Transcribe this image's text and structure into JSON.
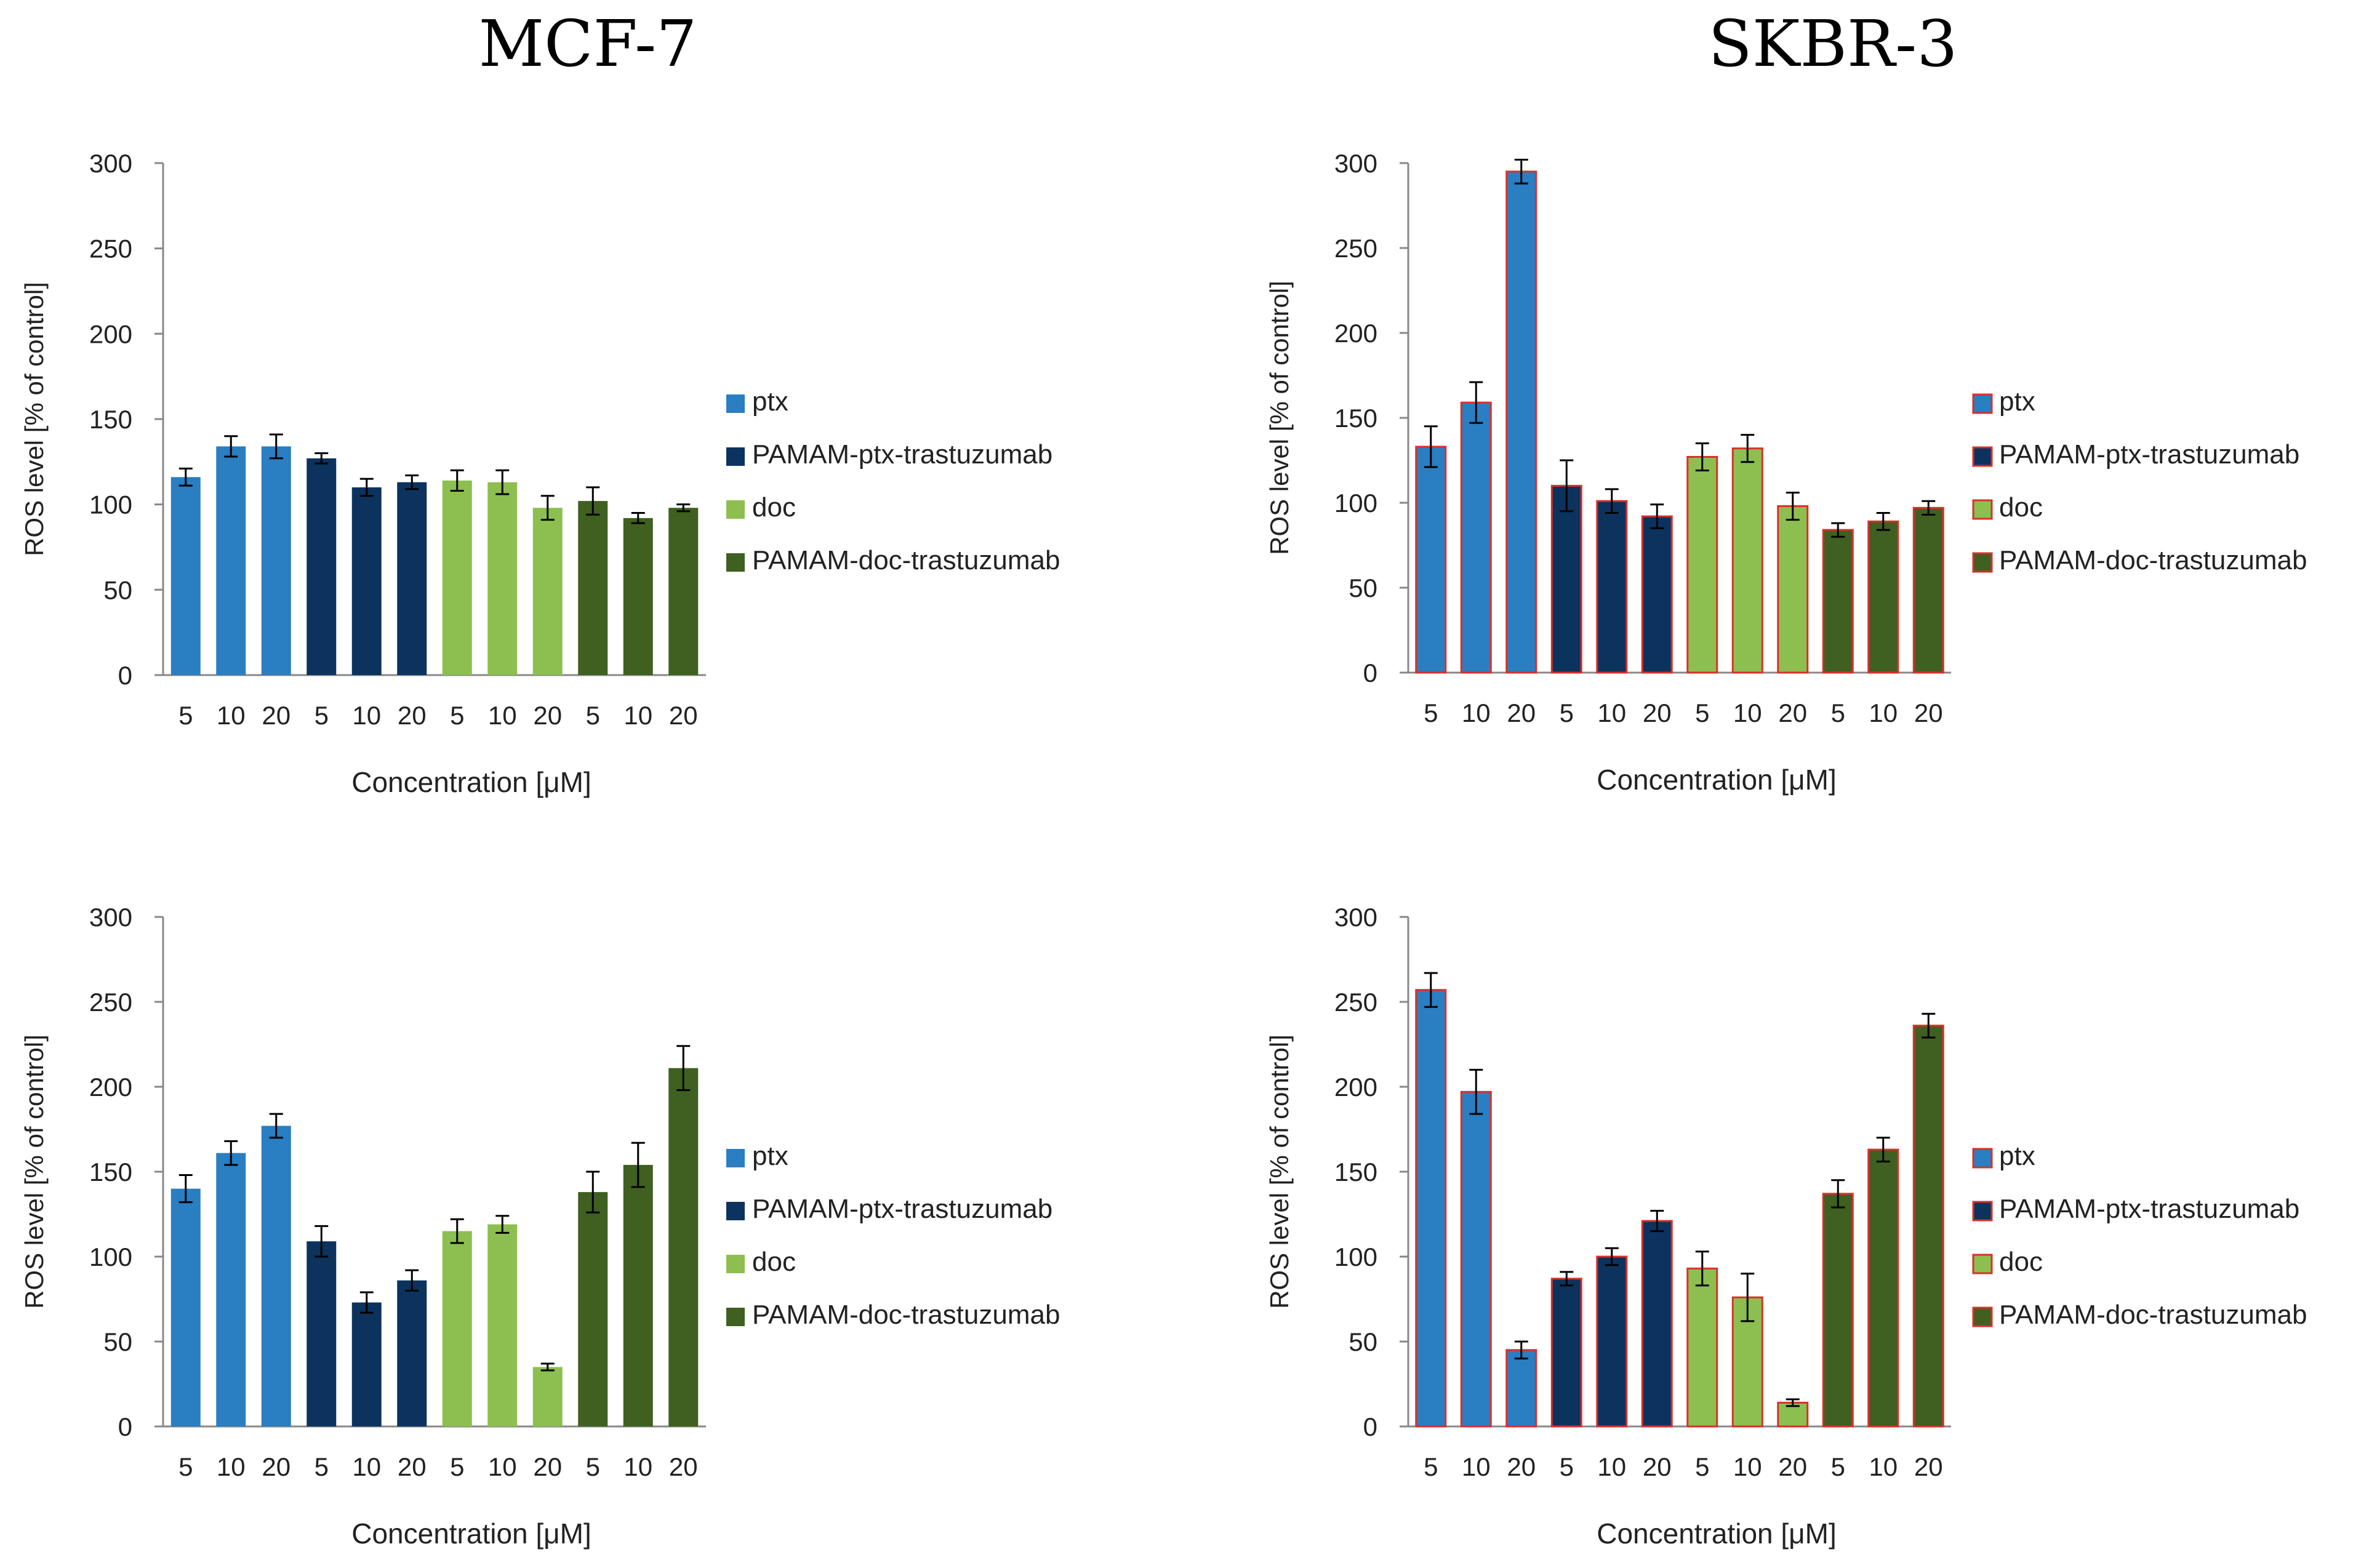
{
  "columns": [
    {
      "title": "MCF-7"
    },
    {
      "title": "SKBR-3"
    }
  ],
  "series_colors": {
    "ptx": "#2a7ec2",
    "PAMAM-ptx-trastuzumab": "#0c335e",
    "doc": "#8cbf4f",
    "PAMAM-doc-trastuzumab": "#3f6020"
  },
  "chart_data": [
    {
      "type": "bar",
      "panel": "MCF-7 top",
      "ylabel": "ROS level [% of control]",
      "xlabel": "Concentration [μM]",
      "ylim": [
        0,
        300
      ],
      "yticks": [
        0,
        50,
        100,
        150,
        200,
        250,
        300
      ],
      "categories": [
        "5",
        "10",
        "20",
        "5",
        "10",
        "20",
        "5",
        "10",
        "20",
        "5",
        "10",
        "20"
      ],
      "groups": [
        "ptx",
        "ptx",
        "ptx",
        "PAMAM-ptx-trastuzumab",
        "PAMAM-ptx-trastuzumab",
        "PAMAM-ptx-trastuzumab",
        "doc",
        "doc",
        "doc",
        "PAMAM-doc-trastuzumab",
        "PAMAM-doc-trastuzumab",
        "PAMAM-doc-trastuzumab"
      ],
      "values": [
        116,
        134,
        134,
        127,
        110,
        113,
        114,
        113,
        98,
        102,
        92,
        98
      ],
      "errors": [
        5,
        6,
        7,
        3,
        5,
        4,
        6,
        7,
        7,
        8,
        3,
        2
      ],
      "legend": [
        "ptx",
        "PAMAM-ptx-trastuzumab",
        "doc",
        "PAMAM-doc-trastuzumab"
      ],
      "bar_outline": false
    },
    {
      "type": "bar",
      "panel": "SKBR-3 top",
      "ylabel": "ROS level [% of control]",
      "xlabel": "Concentration [μM]",
      "ylim": [
        0,
        300
      ],
      "yticks": [
        0,
        50,
        100,
        150,
        200,
        250,
        300
      ],
      "categories": [
        "5",
        "10",
        "20",
        "5",
        "10",
        "20",
        "5",
        "10",
        "20",
        "5",
        "10",
        "20"
      ],
      "groups": [
        "ptx",
        "ptx",
        "ptx",
        "PAMAM-ptx-trastuzumab",
        "PAMAM-ptx-trastuzumab",
        "PAMAM-ptx-trastuzumab",
        "doc",
        "doc",
        "doc",
        "PAMAM-doc-trastuzumab",
        "PAMAM-doc-trastuzumab",
        "PAMAM-doc-trastuzumab"
      ],
      "values": [
        133,
        159,
        295,
        110,
        101,
        92,
        127,
        132,
        98,
        84,
        89,
        97
      ],
      "errors": [
        12,
        12,
        7,
        15,
        7,
        7,
        8,
        8,
        8,
        4,
        5,
        4
      ],
      "legend": [
        "ptx",
        "PAMAM-ptx-trastuzumab",
        "doc",
        "PAMAM-doc-trastuzumab"
      ],
      "bar_outline": true
    },
    {
      "type": "bar",
      "panel": "MCF-7 bottom",
      "ylabel": "ROS level [% of control]",
      "xlabel": "Concentration [μM]",
      "ylim": [
        0,
        300
      ],
      "yticks": [
        0,
        50,
        100,
        150,
        200,
        250,
        300
      ],
      "categories": [
        "5",
        "10",
        "20",
        "5",
        "10",
        "20",
        "5",
        "10",
        "20",
        "5",
        "10",
        "20"
      ],
      "groups": [
        "ptx",
        "ptx",
        "ptx",
        "PAMAM-ptx-trastuzumab",
        "PAMAM-ptx-trastuzumab",
        "PAMAM-ptx-trastuzumab",
        "doc",
        "doc",
        "doc",
        "PAMAM-doc-trastuzumab",
        "PAMAM-doc-trastuzumab",
        "PAMAM-doc-trastuzumab"
      ],
      "values": [
        140,
        161,
        177,
        109,
        73,
        86,
        115,
        119,
        35,
        138,
        154,
        211
      ],
      "errors": [
        8,
        7,
        7,
        9,
        6,
        6,
        7,
        5,
        2,
        12,
        13,
        13
      ],
      "legend": [
        "ptx",
        "PAMAM-ptx-trastuzumab",
        "doc",
        "PAMAM-doc-trastuzumab"
      ],
      "bar_outline": false
    },
    {
      "type": "bar",
      "panel": "SKBR-3 bottom",
      "ylabel": "ROS level [% of control]",
      "xlabel": "Concentration [μM]",
      "ylim": [
        0,
        300
      ],
      "yticks": [
        0,
        50,
        100,
        150,
        200,
        250,
        300
      ],
      "categories": [
        "5",
        "10",
        "20",
        "5",
        "10",
        "20",
        "5",
        "10",
        "20",
        "5",
        "10",
        "20"
      ],
      "groups": [
        "ptx",
        "ptx",
        "ptx",
        "PAMAM-ptx-trastuzumab",
        "PAMAM-ptx-trastuzumab",
        "PAMAM-ptx-trastuzumab",
        "doc",
        "doc",
        "doc",
        "PAMAM-doc-trastuzumab",
        "PAMAM-doc-trastuzumab",
        "PAMAM-doc-trastuzumab"
      ],
      "values": [
        257,
        197,
        45,
        87,
        100,
        121,
        93,
        76,
        14,
        137,
        163,
        236
      ],
      "errors": [
        10,
        13,
        5,
        4,
        5,
        6,
        10,
        14,
        2,
        8,
        7,
        7
      ],
      "legend": [
        "ptx",
        "PAMAM-ptx-trastuzumab",
        "doc",
        "PAMAM-doc-trastuzumab"
      ],
      "bar_outline": true
    }
  ]
}
